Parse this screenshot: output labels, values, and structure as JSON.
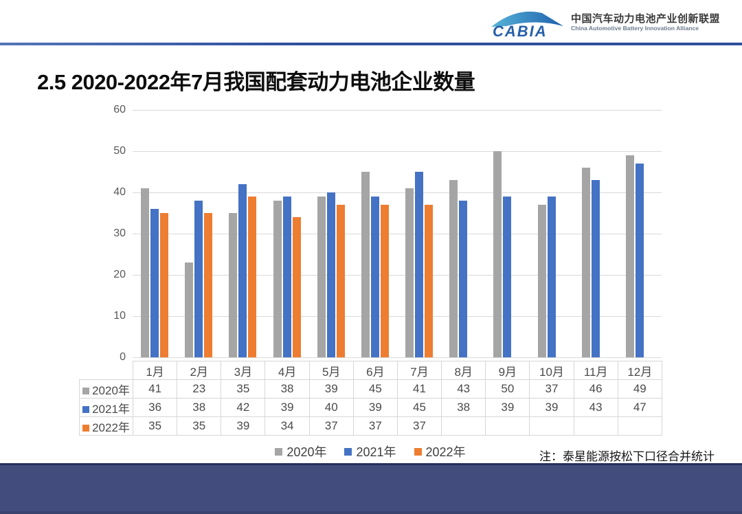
{
  "header": {
    "logo_text": "CABIA",
    "org_name_cn": "中国汽车动力电池产业创新联盟",
    "org_name_en": "China Automotive Battery Innovation Alliance"
  },
  "title": "2.5 2020-2022年7月我国配套动力电池企业数量",
  "note": "注：泰星能源按松下口径合并统计",
  "colors": {
    "series_2020": "#A5A5A5",
    "series_2021": "#4472C4",
    "series_2022": "#ED7D31",
    "header_line": "#2D4F9E",
    "footer_bar": "#424C7D",
    "gridline": "#D9D9D9",
    "axis_text": "#595959"
  },
  "chart_data": {
    "type": "bar",
    "title": "",
    "xlabel": "",
    "ylabel": "",
    "categories": [
      "1月",
      "2月",
      "3月",
      "4月",
      "5月",
      "6月",
      "7月",
      "8月",
      "9月",
      "10月",
      "11月",
      "12月"
    ],
    "series": [
      {
        "name": "2020年",
        "color": "#A5A5A5",
        "values": [
          41,
          23,
          35,
          38,
          39,
          45,
          41,
          43,
          50,
          37,
          46,
          49
        ]
      },
      {
        "name": "2021年",
        "color": "#4472C4",
        "values": [
          36,
          38,
          42,
          39,
          40,
          39,
          45,
          38,
          39,
          39,
          43,
          47
        ]
      },
      {
        "name": "2022年",
        "color": "#ED7D31",
        "values": [
          35,
          35,
          39,
          34,
          37,
          37,
          37,
          null,
          null,
          null,
          null,
          null
        ]
      }
    ],
    "ylim": [
      0,
      60
    ],
    "yticks": [
      0,
      10,
      20,
      30,
      40,
      50,
      60
    ],
    "grid": true,
    "legend_position": "bottom",
    "data_table_shown": true
  }
}
